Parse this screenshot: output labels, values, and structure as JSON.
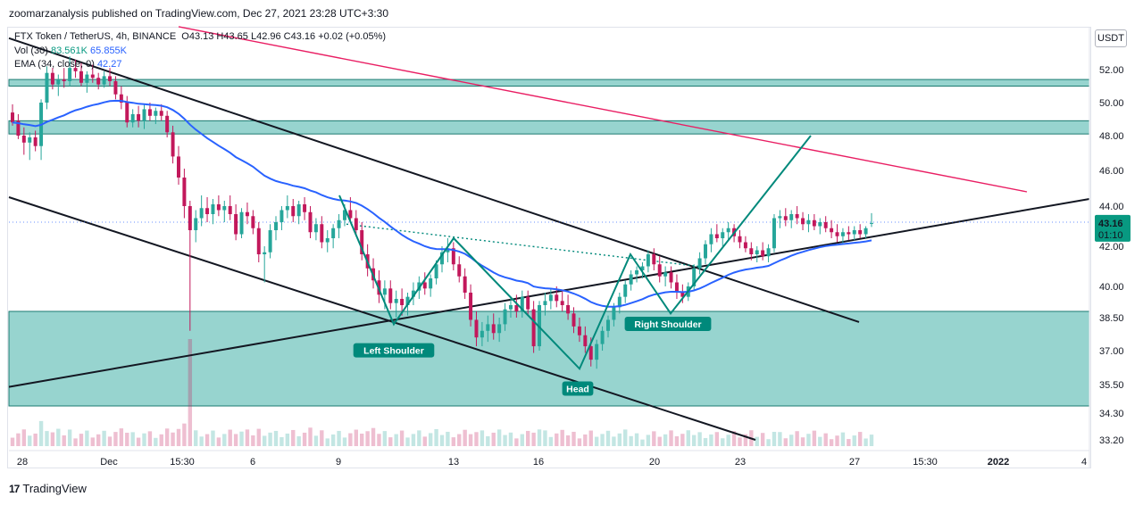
{
  "header": {
    "published_text": "zoomarzanalysis published on TradingView.com, Dec 27, 2021 23:28 UTC+3:30"
  },
  "legend": {
    "symbol_line": "FTX Token / TetherUS, 4h, BINANCE",
    "ohlc": "O43.13 H43.65 L42.96 C43.16 +0.02 (+0.05%)",
    "vol_label": "Vol (30)",
    "vol_value_1": "83.561K",
    "vol_value_2": "65.855K",
    "ema_label": "EMA (34, close, 0)",
    "ema_value": "42.27"
  },
  "currency_button": "USDT",
  "footer": {
    "logo_mark": "17",
    "brand": "TradingView"
  },
  "colors": {
    "up": "#26a69a",
    "down": "#c2185b",
    "ema": "#2962ff",
    "zone_fill": "#26a69a",
    "resistance_line": "#e91e63",
    "pattern": "#00897b",
    "price_badge": "#089981"
  },
  "price_badge": {
    "price": "43.16",
    "countdown": "01:10"
  },
  "chart_data": {
    "type": "candlestick",
    "symbol": "FTX Token / TetherUS",
    "interval": "4h",
    "exchange": "BINANCE",
    "price_scale": "log",
    "ylim": [
      33.0,
      55.0
    ],
    "y_ticks": [
      "52.00",
      "50.00",
      "48.00",
      "46.00",
      "44.00",
      "42.00",
      "40.00",
      "38.50",
      "37.00",
      "35.50",
      "34.30",
      "33.20"
    ],
    "x_ticks": [
      "28",
      "Dec",
      "15:30",
      "6",
      "9",
      "13",
      "16",
      "20",
      "23",
      "27",
      "15:30",
      "2022",
      "4"
    ],
    "last_price": 43.16,
    "last_close_ohlc": {
      "open": 43.13,
      "high": 43.65,
      "low": 42.96,
      "close": 43.16
    },
    "ema_34_last": 42.27,
    "volume_sma_30": [
      83.561,
      65.855
    ],
    "candles": [
      {
        "o": 49.4,
        "h": 49.9,
        "l": 48.6,
        "c": 48.8
      },
      {
        "o": 48.9,
        "h": 49.3,
        "l": 47.8,
        "c": 48.0
      },
      {
        "o": 48.0,
        "h": 48.5,
        "l": 46.9,
        "c": 47.6
      },
      {
        "o": 47.6,
        "h": 48.2,
        "l": 46.6,
        "c": 47.9
      },
      {
        "o": 47.9,
        "h": 48.3,
        "l": 47.1,
        "c": 47.4
      },
      {
        "o": 47.4,
        "h": 50.2,
        "l": 46.6,
        "c": 50.0
      },
      {
        "o": 50.0,
        "h": 52.2,
        "l": 49.6,
        "c": 51.8
      },
      {
        "o": 51.8,
        "h": 52.1,
        "l": 50.8,
        "c": 51.1
      },
      {
        "o": 51.1,
        "h": 51.7,
        "l": 50.4,
        "c": 51.4
      },
      {
        "o": 51.4,
        "h": 52.1,
        "l": 50.9,
        "c": 51.3
      },
      {
        "o": 51.3,
        "h": 52.8,
        "l": 51.0,
        "c": 52.1
      },
      {
        "o": 52.1,
        "h": 52.6,
        "l": 51.5,
        "c": 51.9
      },
      {
        "o": 51.9,
        "h": 52.4,
        "l": 51.0,
        "c": 51.2
      },
      {
        "o": 51.2,
        "h": 51.9,
        "l": 50.6,
        "c": 51.7
      },
      {
        "o": 51.7,
        "h": 52.3,
        "l": 51.2,
        "c": 51.5
      },
      {
        "o": 51.5,
        "h": 51.8,
        "l": 50.8,
        "c": 51.1
      },
      {
        "o": 51.1,
        "h": 51.9,
        "l": 50.9,
        "c": 51.6
      },
      {
        "o": 51.6,
        "h": 52.1,
        "l": 51.0,
        "c": 51.3
      },
      {
        "o": 51.3,
        "h": 51.6,
        "l": 50.2,
        "c": 50.5
      },
      {
        "o": 50.5,
        "h": 51.0,
        "l": 49.6,
        "c": 50.0
      },
      {
        "o": 50.0,
        "h": 50.4,
        "l": 48.5,
        "c": 48.8
      },
      {
        "o": 48.8,
        "h": 49.6,
        "l": 48.5,
        "c": 49.3
      },
      {
        "o": 49.3,
        "h": 49.8,
        "l": 48.5,
        "c": 48.9
      },
      {
        "o": 48.9,
        "h": 49.9,
        "l": 48.4,
        "c": 49.6
      },
      {
        "o": 49.6,
        "h": 50.0,
        "l": 48.9,
        "c": 49.2
      },
      {
        "o": 49.2,
        "h": 49.7,
        "l": 48.7,
        "c": 49.5
      },
      {
        "o": 49.5,
        "h": 49.9,
        "l": 48.9,
        "c": 49.2
      },
      {
        "o": 49.2,
        "h": 49.5,
        "l": 47.9,
        "c": 48.2
      },
      {
        "o": 48.2,
        "h": 48.6,
        "l": 46.4,
        "c": 46.8
      },
      {
        "o": 46.8,
        "h": 47.4,
        "l": 45.2,
        "c": 45.6
      },
      {
        "o": 45.6,
        "h": 46.1,
        "l": 43.4,
        "c": 44.0
      },
      {
        "o": 44.0,
        "h": 44.3,
        "l": 37.9,
        "c": 42.8
      },
      {
        "o": 42.8,
        "h": 43.8,
        "l": 42.2,
        "c": 43.4
      },
      {
        "o": 43.4,
        "h": 44.6,
        "l": 43.0,
        "c": 43.9
      },
      {
        "o": 43.9,
        "h": 44.5,
        "l": 43.2,
        "c": 43.6
      },
      {
        "o": 43.6,
        "h": 44.4,
        "l": 43.1,
        "c": 44.1
      },
      {
        "o": 44.1,
        "h": 44.6,
        "l": 43.5,
        "c": 43.8
      },
      {
        "o": 43.8,
        "h": 44.3,
        "l": 43.2,
        "c": 44.0
      },
      {
        "o": 44.0,
        "h": 44.6,
        "l": 43.3,
        "c": 43.6
      },
      {
        "o": 43.6,
        "h": 44.1,
        "l": 42.3,
        "c": 42.6
      },
      {
        "o": 42.6,
        "h": 43.9,
        "l": 42.4,
        "c": 43.7
      },
      {
        "o": 43.7,
        "h": 44.2,
        "l": 43.1,
        "c": 43.5
      },
      {
        "o": 43.5,
        "h": 43.8,
        "l": 42.6,
        "c": 42.9
      },
      {
        "o": 42.9,
        "h": 43.2,
        "l": 41.2,
        "c": 41.6
      },
      {
        "o": 41.6,
        "h": 42.0,
        "l": 40.2,
        "c": 41.7
      },
      {
        "o": 41.7,
        "h": 43.1,
        "l": 41.4,
        "c": 42.8
      },
      {
        "o": 42.8,
        "h": 43.5,
        "l": 42.3,
        "c": 43.2
      },
      {
        "o": 43.2,
        "h": 44.0,
        "l": 42.8,
        "c": 43.8
      },
      {
        "o": 43.8,
        "h": 44.6,
        "l": 43.4,
        "c": 44.0
      },
      {
        "o": 44.0,
        "h": 44.4,
        "l": 43.2,
        "c": 43.5
      },
      {
        "o": 43.5,
        "h": 44.3,
        "l": 43.1,
        "c": 44.1
      },
      {
        "o": 44.1,
        "h": 44.5,
        "l": 43.3,
        "c": 43.7
      },
      {
        "o": 43.7,
        "h": 44.0,
        "l": 42.4,
        "c": 42.7
      },
      {
        "o": 42.7,
        "h": 43.4,
        "l": 42.3,
        "c": 43.1
      },
      {
        "o": 43.1,
        "h": 43.5,
        "l": 41.9,
        "c": 42.2
      },
      {
        "o": 42.2,
        "h": 42.8,
        "l": 41.7,
        "c": 42.4
      },
      {
        "o": 42.4,
        "h": 43.1,
        "l": 41.9,
        "c": 42.9
      },
      {
        "o": 42.9,
        "h": 43.6,
        "l": 42.4,
        "c": 43.3
      },
      {
        "o": 43.3,
        "h": 44.1,
        "l": 43.0,
        "c": 43.8
      },
      {
        "o": 43.8,
        "h": 44.5,
        "l": 43.2,
        "c": 43.4
      },
      {
        "o": 43.4,
        "h": 43.8,
        "l": 42.5,
        "c": 42.8
      },
      {
        "o": 42.8,
        "h": 43.2,
        "l": 41.3,
        "c": 41.6
      },
      {
        "o": 41.6,
        "h": 42.1,
        "l": 40.5,
        "c": 40.9
      },
      {
        "o": 40.9,
        "h": 41.4,
        "l": 39.9,
        "c": 40.3
      },
      {
        "o": 40.3,
        "h": 40.8,
        "l": 39.2,
        "c": 39.6
      },
      {
        "o": 39.6,
        "h": 40.3,
        "l": 38.9,
        "c": 39.9
      },
      {
        "o": 39.9,
        "h": 40.3,
        "l": 38.9,
        "c": 39.2
      },
      {
        "o": 39.2,
        "h": 39.8,
        "l": 38.5,
        "c": 39.4
      },
      {
        "o": 39.4,
        "h": 39.9,
        "l": 38.6,
        "c": 39.1
      },
      {
        "o": 39.1,
        "h": 39.7,
        "l": 38.6,
        "c": 39.5
      },
      {
        "o": 39.5,
        "h": 40.2,
        "l": 39.1,
        "c": 39.8
      },
      {
        "o": 39.8,
        "h": 40.5,
        "l": 39.4,
        "c": 40.2
      },
      {
        "o": 40.2,
        "h": 40.7,
        "l": 39.6,
        "c": 39.9
      },
      {
        "o": 39.9,
        "h": 40.6,
        "l": 39.5,
        "c": 40.4
      },
      {
        "o": 40.4,
        "h": 41.3,
        "l": 40.1,
        "c": 41.1
      },
      {
        "o": 41.1,
        "h": 42.0,
        "l": 40.7,
        "c": 41.7
      },
      {
        "o": 41.7,
        "h": 42.4,
        "l": 41.2,
        "c": 41.9
      },
      {
        "o": 41.9,
        "h": 42.2,
        "l": 40.8,
        "c": 41.1
      },
      {
        "o": 41.1,
        "h": 41.5,
        "l": 40.2,
        "c": 40.5
      },
      {
        "o": 40.5,
        "h": 40.9,
        "l": 39.4,
        "c": 39.7
      },
      {
        "o": 39.7,
        "h": 40.1,
        "l": 38.1,
        "c": 38.4
      },
      {
        "o": 38.4,
        "h": 38.8,
        "l": 37.2,
        "c": 37.6
      },
      {
        "o": 37.6,
        "h": 38.3,
        "l": 37.2,
        "c": 37.9
      },
      {
        "o": 37.9,
        "h": 38.6,
        "l": 37.4,
        "c": 38.2
      },
      {
        "o": 38.2,
        "h": 38.7,
        "l": 37.5,
        "c": 37.8
      },
      {
        "o": 37.8,
        "h": 38.5,
        "l": 37.4,
        "c": 38.2
      },
      {
        "o": 38.2,
        "h": 39.2,
        "l": 37.9,
        "c": 38.9
      },
      {
        "o": 38.9,
        "h": 39.5,
        "l": 38.5,
        "c": 39.1
      },
      {
        "o": 39.1,
        "h": 39.6,
        "l": 38.5,
        "c": 38.8
      },
      {
        "o": 38.8,
        "h": 39.8,
        "l": 38.5,
        "c": 39.5
      },
      {
        "o": 39.5,
        "h": 39.8,
        "l": 38.6,
        "c": 38.9
      },
      {
        "o": 38.9,
        "h": 39.3,
        "l": 36.9,
        "c": 37.2
      },
      {
        "o": 37.2,
        "h": 39.3,
        "l": 37.0,
        "c": 39.1
      },
      {
        "o": 39.1,
        "h": 39.7,
        "l": 38.6,
        "c": 39.3
      },
      {
        "o": 39.3,
        "h": 39.9,
        "l": 38.9,
        "c": 39.6
      },
      {
        "o": 39.6,
        "h": 40.0,
        "l": 39.0,
        "c": 39.3
      },
      {
        "o": 39.3,
        "h": 39.8,
        "l": 38.8,
        "c": 39.1
      },
      {
        "o": 39.1,
        "h": 39.6,
        "l": 38.4,
        "c": 38.7
      },
      {
        "o": 38.7,
        "h": 39.0,
        "l": 37.8,
        "c": 38.1
      },
      {
        "o": 38.1,
        "h": 38.5,
        "l": 37.4,
        "c": 37.7
      },
      {
        "o": 37.7,
        "h": 38.1,
        "l": 36.9,
        "c": 37.2
      },
      {
        "o": 37.2,
        "h": 37.6,
        "l": 36.3,
        "c": 36.6
      },
      {
        "o": 36.6,
        "h": 37.5,
        "l": 36.2,
        "c": 37.3
      },
      {
        "o": 37.3,
        "h": 38.1,
        "l": 37.0,
        "c": 37.9
      },
      {
        "o": 37.9,
        "h": 38.6,
        "l": 37.6,
        "c": 38.4
      },
      {
        "o": 38.4,
        "h": 39.2,
        "l": 38.1,
        "c": 39.0
      },
      {
        "o": 39.0,
        "h": 39.7,
        "l": 38.7,
        "c": 39.5
      },
      {
        "o": 39.5,
        "h": 40.3,
        "l": 39.2,
        "c": 40.1
      },
      {
        "o": 40.1,
        "h": 40.8,
        "l": 39.8,
        "c": 40.6
      },
      {
        "o": 40.6,
        "h": 41.0,
        "l": 40.2,
        "c": 40.8
      },
      {
        "o": 40.8,
        "h": 41.2,
        "l": 40.4,
        "c": 41.0
      },
      {
        "o": 41.0,
        "h": 41.8,
        "l": 40.7,
        "c": 41.6
      },
      {
        "o": 41.6,
        "h": 41.9,
        "l": 40.8,
        "c": 41.1
      },
      {
        "o": 41.1,
        "h": 41.5,
        "l": 40.2,
        "c": 40.5
      },
      {
        "o": 40.5,
        "h": 41.0,
        "l": 40.0,
        "c": 40.7
      },
      {
        "o": 40.7,
        "h": 41.0,
        "l": 39.9,
        "c": 40.2
      },
      {
        "o": 40.2,
        "h": 40.6,
        "l": 39.4,
        "c": 39.7
      },
      {
        "o": 39.7,
        "h": 40.1,
        "l": 39.2,
        "c": 39.5
      },
      {
        "o": 39.5,
        "h": 40.2,
        "l": 39.3,
        "c": 40.0
      },
      {
        "o": 40.0,
        "h": 41.1,
        "l": 39.8,
        "c": 40.9
      },
      {
        "o": 40.9,
        "h": 41.7,
        "l": 40.6,
        "c": 41.4
      },
      {
        "o": 41.4,
        "h": 42.3,
        "l": 41.1,
        "c": 42.1
      },
      {
        "o": 42.1,
        "h": 42.9,
        "l": 41.7,
        "c": 42.6
      },
      {
        "o": 42.6,
        "h": 43.1,
        "l": 42.2,
        "c": 42.4
      },
      {
        "o": 42.4,
        "h": 42.9,
        "l": 42.0,
        "c": 42.7
      },
      {
        "o": 42.7,
        "h": 43.2,
        "l": 42.3,
        "c": 42.9
      },
      {
        "o": 42.9,
        "h": 43.1,
        "l": 42.2,
        "c": 42.5
      },
      {
        "o": 42.5,
        "h": 42.8,
        "l": 41.9,
        "c": 42.2
      },
      {
        "o": 42.2,
        "h": 42.5,
        "l": 41.7,
        "c": 41.9
      },
      {
        "o": 41.9,
        "h": 42.2,
        "l": 41.3,
        "c": 41.6
      },
      {
        "o": 41.6,
        "h": 42.0,
        "l": 41.2,
        "c": 41.8
      },
      {
        "o": 41.8,
        "h": 42.2,
        "l": 41.3,
        "c": 41.5
      },
      {
        "o": 41.5,
        "h": 42.1,
        "l": 41.2,
        "c": 41.9
      },
      {
        "o": 41.9,
        "h": 43.6,
        "l": 41.7,
        "c": 43.4
      },
      {
        "o": 43.4,
        "h": 43.8,
        "l": 42.9,
        "c": 43.5
      },
      {
        "o": 43.5,
        "h": 43.9,
        "l": 43.0,
        "c": 43.3
      },
      {
        "o": 43.3,
        "h": 43.8,
        "l": 42.9,
        "c": 43.6
      },
      {
        "o": 43.6,
        "h": 44.0,
        "l": 43.1,
        "c": 43.4
      },
      {
        "o": 43.4,
        "h": 43.7,
        "l": 42.8,
        "c": 43.1
      },
      {
        "o": 43.1,
        "h": 43.6,
        "l": 42.7,
        "c": 43.3
      },
      {
        "o": 43.3,
        "h": 43.6,
        "l": 42.8,
        "c": 43.0
      },
      {
        "o": 43.0,
        "h": 43.4,
        "l": 42.6,
        "c": 43.2
      },
      {
        "o": 43.2,
        "h": 43.5,
        "l": 42.7,
        "c": 42.9
      },
      {
        "o": 42.9,
        "h": 43.3,
        "l": 42.4,
        "c": 42.7
      },
      {
        "o": 42.7,
        "h": 43.1,
        "l": 42.2,
        "c": 42.5
      },
      {
        "o": 42.5,
        "h": 42.9,
        "l": 42.1,
        "c": 42.7
      },
      {
        "o": 42.7,
        "h": 43.0,
        "l": 42.3,
        "c": 42.6
      },
      {
        "o": 42.6,
        "h": 43.0,
        "l": 42.3,
        "c": 42.8
      },
      {
        "o": 42.8,
        "h": 43.1,
        "l": 42.4,
        "c": 42.6
      },
      {
        "o": 42.6,
        "h": 43.0,
        "l": 42.4,
        "c": 42.9
      },
      {
        "o": 43.13,
        "h": 43.65,
        "l": 42.96,
        "c": 43.16
      }
    ],
    "drawings": {
      "zones": [
        {
          "label": "upper resistance zone",
          "from": 51.0,
          "to": 51.4
        },
        {
          "label": "mid resistance zone",
          "from": 48.1,
          "to": 48.9
        },
        {
          "label": "support zone",
          "from": 34.6,
          "to": 38.8
        }
      ],
      "head_and_shoulders": [
        "Left Shoulder",
        "Head",
        "Right Shoulder"
      ]
    }
  }
}
